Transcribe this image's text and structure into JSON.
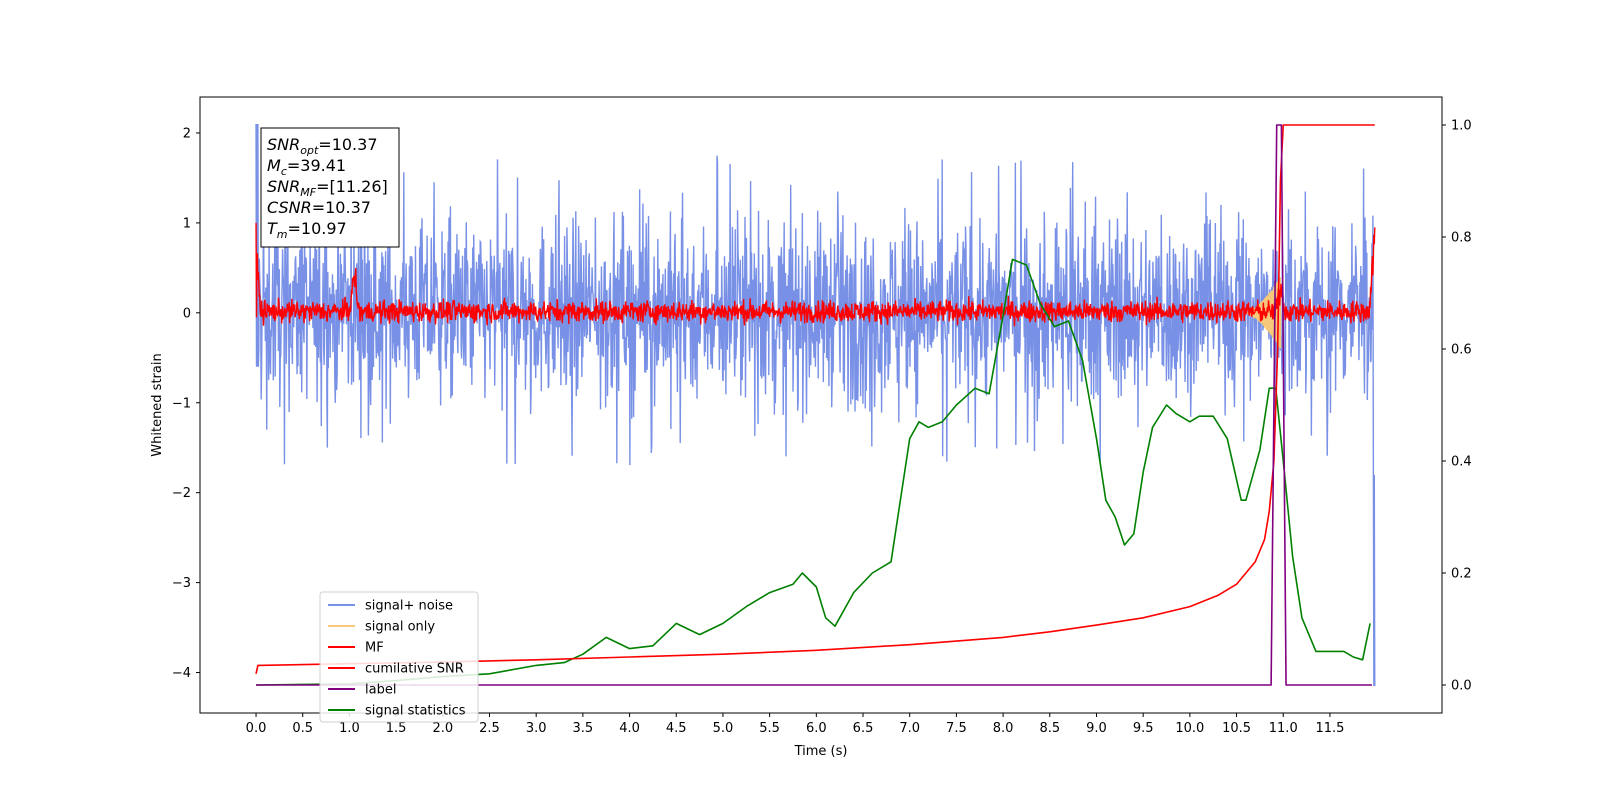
{
  "chart_data": {
    "type": "line",
    "title": "",
    "xlabel": "Time (s)",
    "ylabel": "Whitened strain",
    "xlim": [
      -0.6,
      12.7
    ],
    "ylim": [
      -4.45,
      2.4
    ],
    "y2lim": [
      -0.05,
      1.05
    ],
    "grid": false,
    "legend_position": "lower-left",
    "x_ticks": [
      0.0,
      0.5,
      1.0,
      1.5,
      2.0,
      2.5,
      3.0,
      3.5,
      4.0,
      4.5,
      5.0,
      5.5,
      6.0,
      6.5,
      7.0,
      7.5,
      8.0,
      8.5,
      9.0,
      9.5,
      10.0,
      10.5,
      11.0,
      11.5
    ],
    "x_tick_labels": [
      "0.0",
      "0.5",
      "1.0",
      "1.5",
      "2.0",
      "2.5",
      "3.0",
      "3.5",
      "4.0",
      "4.5",
      "5.0",
      "5.5",
      "6.0",
      "6.5",
      "7.0",
      "7.5",
      "8.0",
      "8.5",
      "9.0",
      "9.5",
      "10.0",
      "10.5",
      "11.0",
      "11.5"
    ],
    "y_ticks": [
      2,
      1,
      0,
      -1,
      -2,
      -3,
      -4
    ],
    "y_tick_labels": [
      "2",
      "1",
      "0",
      "−1",
      "−2",
      "−3",
      "−4"
    ],
    "y2_ticks": [
      1.0,
      0.8,
      0.6,
      0.4,
      0.2,
      0.0
    ],
    "y2_tick_labels": [
      "1.0",
      "0.8",
      "0.6",
      "0.4",
      "0.2",
      "0.0"
    ],
    "annotation": {
      "lines": [
        {
          "base": "SNR",
          "sub": "opt",
          "rest": "=10.37"
        },
        {
          "base": "M",
          "sub": "c",
          "rest": "=39.41"
        },
        {
          "base": "SNR",
          "sub": "MF",
          "rest": "=[11.26]"
        },
        {
          "base": "CSNR",
          "sub": "",
          "rest": "=10.37"
        },
        {
          "base": "T",
          "sub": "m",
          "rest": "=10.97"
        }
      ]
    },
    "series": [
      {
        "name": "signal+ noise",
        "color": "#7891e6",
        "axis": "left",
        "kind": "noise",
        "x_range": [
          0.0,
          11.98
        ],
        "typical_range": [
          -0.85,
          0.9
        ],
        "extreme_range": [
          -1.7,
          2.1
        ]
      },
      {
        "name": "signal only",
        "color": "#f5c87a",
        "axis": "left",
        "kind": "chirp",
        "x_range": [
          10.6,
          10.97
        ],
        "amplitude_max": 0.4
      },
      {
        "name": "MF",
        "color": "#ff0000",
        "axis": "left",
        "kind": "noise",
        "x_range": [
          0.0,
          11.98
        ],
        "typical_range": [
          -0.12,
          0.15
        ],
        "peaks": [
          {
            "x": 0.0,
            "y": 1.0
          },
          {
            "x": 1.05,
            "y": 0.6
          },
          {
            "x": 10.97,
            "y": 0.4
          },
          {
            "x": 11.97,
            "y": 0.95
          }
        ]
      },
      {
        "name": "cumilative SNR",
        "color": "#ff0000",
        "axis": "right",
        "x": [
          0.0,
          0.02,
          1.0,
          2.0,
          3.0,
          4.0,
          5.0,
          6.0,
          7.0,
          8.0,
          8.5,
          9.0,
          9.5,
          10.0,
          10.3,
          10.5,
          10.7,
          10.8,
          10.85,
          10.9,
          10.94,
          10.97,
          11.0,
          11.05,
          11.98
        ],
        "y": [
          0.02,
          0.035,
          0.038,
          0.041,
          0.045,
          0.05,
          0.055,
          0.062,
          0.072,
          0.085,
          0.095,
          0.107,
          0.12,
          0.14,
          0.16,
          0.18,
          0.22,
          0.26,
          0.31,
          0.4,
          0.6,
          0.9,
          1.0,
          1.0,
          1.0
        ]
      },
      {
        "name": "label",
        "color": "#800080",
        "axis": "right",
        "x": [
          0.0,
          10.87,
          10.93,
          10.98,
          11.03,
          11.95
        ],
        "y": [
          0.0,
          0.0,
          1.0,
          1.0,
          0.0,
          0.0
        ]
      },
      {
        "name": "signal statistics",
        "color": "#008000",
        "axis": "right",
        "x": [
          0.0,
          0.5,
          1.0,
          1.5,
          2.0,
          2.5,
          3.0,
          3.3,
          3.5,
          3.75,
          4.0,
          4.25,
          4.5,
          4.75,
          5.0,
          5.25,
          5.5,
          5.75,
          5.85,
          6.0,
          6.1,
          6.2,
          6.4,
          6.6,
          6.8,
          7.0,
          7.1,
          7.2,
          7.35,
          7.5,
          7.7,
          7.85,
          8.0,
          8.1,
          8.25,
          8.4,
          8.55,
          8.7,
          8.85,
          9.0,
          9.1,
          9.2,
          9.3,
          9.4,
          9.5,
          9.6,
          9.75,
          9.85,
          10.0,
          10.1,
          10.25,
          10.4,
          10.55,
          10.6,
          10.75,
          10.85,
          10.92,
          11.0,
          11.1,
          11.2,
          11.35,
          11.5,
          11.65,
          11.75,
          11.85,
          11.93
        ],
        "y": [
          0.0,
          0.001,
          0.002,
          0.008,
          0.015,
          0.02,
          0.035,
          0.04,
          0.055,
          0.085,
          0.065,
          0.07,
          0.11,
          0.09,
          0.11,
          0.14,
          0.165,
          0.18,
          0.2,
          0.175,
          0.12,
          0.105,
          0.165,
          0.2,
          0.22,
          0.44,
          0.47,
          0.46,
          0.47,
          0.5,
          0.53,
          0.52,
          0.66,
          0.76,
          0.75,
          0.68,
          0.64,
          0.65,
          0.58,
          0.44,
          0.33,
          0.3,
          0.25,
          0.27,
          0.38,
          0.46,
          0.5,
          0.485,
          0.47,
          0.48,
          0.48,
          0.44,
          0.33,
          0.33,
          0.42,
          0.53,
          0.53,
          0.4,
          0.23,
          0.12,
          0.06,
          0.06,
          0.06,
          0.05,
          0.045,
          0.11
        ]
      }
    ]
  }
}
